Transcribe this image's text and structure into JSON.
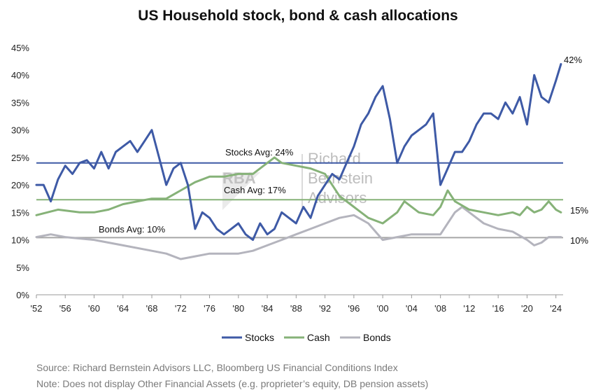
{
  "chart_data": {
    "type": "line",
    "title": "US Household stock, bond & cash allocations",
    "xlabel": "",
    "ylabel": "",
    "xlim": [
      1952,
      2025
    ],
    "ylim": [
      0,
      45
    ],
    "y_ticks": [
      "0%",
      "5%",
      "10%",
      "15%",
      "20%",
      "25%",
      "30%",
      "35%",
      "40%",
      "45%"
    ],
    "x_tick_years": [
      1952,
      1956,
      1960,
      1964,
      1968,
      1972,
      1976,
      1980,
      1984,
      1988,
      1992,
      1996,
      2000,
      2004,
      2008,
      2012,
      2016,
      2020,
      2024
    ],
    "x_ticks": [
      "'52",
      "'56",
      "'60",
      "'64",
      "'68",
      "'72",
      "'76",
      "'80",
      "'84",
      "'88",
      "'92",
      "'96",
      "'00",
      "'04",
      "'08",
      "'12",
      "'16",
      "'20",
      "'24"
    ],
    "series": [
      {
        "name": "Stocks",
        "color": "#3e5aa6",
        "x": [
          1952,
          1953,
          1954,
          1955,
          1956,
          1957,
          1958,
          1959,
          1960,
          1961,
          1962,
          1963,
          1964,
          1965,
          1966,
          1967,
          1968,
          1969,
          1970,
          1971,
          1972,
          1973,
          1974,
          1975,
          1976,
          1977,
          1978,
          1979,
          1980,
          1981,
          1982,
          1983,
          1984,
          1985,
          1986,
          1987,
          1988,
          1989,
          1990,
          1991,
          1992,
          1993,
          1994,
          1995,
          1996,
          1997,
          1998,
          1999,
          2000,
          2001,
          2002,
          2003,
          2004,
          2005,
          2006,
          2007,
          2008,
          2009,
          2010,
          2011,
          2012,
          2013,
          2014,
          2015,
          2016,
          2017,
          2018,
          2019,
          2020,
          2021,
          2022,
          2023,
          2024,
          2024.7
        ],
        "values": [
          20,
          20,
          17,
          21,
          23.5,
          22,
          24,
          24.5,
          23,
          26,
          23,
          26,
          27,
          28,
          26,
          28,
          30,
          25,
          20,
          23,
          24,
          20,
          12,
          15,
          14,
          12,
          11,
          12,
          13,
          11,
          10,
          13,
          11,
          12,
          15,
          14,
          13,
          16,
          14,
          18,
          20,
          22,
          21,
          24,
          27,
          31,
          33,
          36,
          38,
          32,
          24,
          27,
          29,
          30,
          31,
          33,
          20,
          23,
          26,
          26,
          28,
          31,
          33,
          33,
          32,
          35,
          33,
          36,
          31,
          40,
          36,
          35,
          39,
          42
        ]
      },
      {
        "name": "Cash",
        "color": "#86b278",
        "x": [
          1952,
          1955,
          1958,
          1960,
          1962,
          1964,
          1966,
          1968,
          1970,
          1972,
          1974,
          1976,
          1978,
          1980,
          1982,
          1984,
          1985,
          1986,
          1988,
          1990,
          1992,
          1994,
          1996,
          1998,
          2000,
          2002,
          2003,
          2005,
          2007,
          2008,
          2009,
          2010,
          2012,
          2014,
          2016,
          2018,
          2019,
          2020,
          2021,
          2022,
          2023,
          2024,
          2024.7
        ],
        "values": [
          14.5,
          15.5,
          15,
          15,
          15.5,
          16.5,
          17,
          17.5,
          17.5,
          19,
          20.5,
          21.5,
          21.5,
          22,
          22,
          24,
          25,
          24,
          23.5,
          23,
          22,
          18,
          16,
          14,
          13,
          15,
          17,
          15,
          14.5,
          16,
          19,
          17,
          15.5,
          15,
          14.5,
          15,
          14.5,
          16,
          15,
          15.5,
          17,
          15.5,
          15
        ]
      },
      {
        "name": "Bonds",
        "color": "#b4b4bd",
        "x": [
          1952,
          1954,
          1956,
          1960,
          1964,
          1968,
          1970,
          1972,
          1974,
          1976,
          1978,
          1980,
          1982,
          1984,
          1986,
          1988,
          1990,
          1992,
          1994,
          1996,
          1998,
          2000,
          2002,
          2004,
          2006,
          2008,
          2010,
          2011,
          2012,
          2014,
          2016,
          2018,
          2020,
          2021,
          2022,
          2023,
          2024,
          2024.7
        ],
        "values": [
          10.5,
          11,
          10.5,
          10,
          9,
          8,
          7.5,
          6.5,
          7,
          7.5,
          7.5,
          7.5,
          8,
          9,
          10,
          11,
          12,
          13,
          14,
          14.5,
          13,
          10,
          10.5,
          11,
          11,
          11,
          15,
          16,
          15,
          13,
          12,
          11.5,
          10,
          9,
          9.5,
          10.5,
          10.5,
          10.5
        ]
      }
    ],
    "averages": [
      {
        "name": "Stocks Avg",
        "label": "Stocks Avg: 24%",
        "value": 24,
        "color": "#3e5aa6"
      },
      {
        "name": "Cash Avg",
        "label": "Cash Avg: 17%",
        "value": 17.3,
        "color": "#86b278"
      },
      {
        "name": "Bonds Avg",
        "label": "Bonds Avg: 10%",
        "value": 10.4,
        "color": "#a6a6a6"
      }
    ],
    "end_labels": [
      "42%",
      "15%",
      "10%"
    ],
    "legend": [
      "Stocks",
      "Cash",
      "Bonds"
    ],
    "legend_position": "bottom",
    "watermark_text": [
      "RBA",
      "Richard",
      "Bernstein",
      "Advisors"
    ]
  },
  "notes": {
    "source": "Source: Richard Bernstein Advisors LLC, Bloomberg US Financial Conditions Index",
    "note": "Note: Does not display Other Financial Assets (e.g. proprieter’s equity, DB pension assets)"
  }
}
